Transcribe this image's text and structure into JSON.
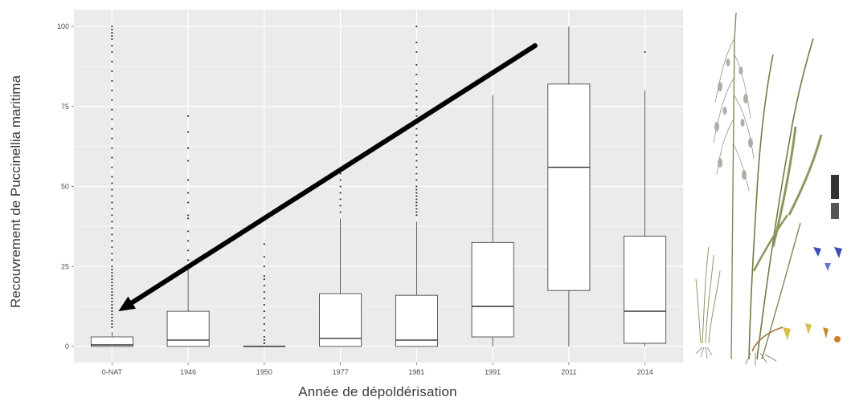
{
  "chart_data": {
    "type": "boxplot",
    "title": "",
    "xlabel": "Année de dépoldérisation",
    "ylabel": "Recouvrement de Puccinellia maritima",
    "ylim": [
      0,
      100
    ],
    "yticks": [
      0,
      25,
      50,
      75,
      100
    ],
    "grid": true,
    "categories": [
      "0-NAT",
      "1946",
      "1950",
      "1977",
      "1981",
      "1991",
      "2011",
      "2014"
    ],
    "boxes": [
      {
        "category": "0-NAT",
        "whisker_low": 0,
        "q1": 0,
        "median": 0.5,
        "q3": 3,
        "whisker_high": 4.5,
        "outliers": [
          6,
          7,
          8,
          9,
          10,
          11,
          12,
          13,
          14,
          15,
          16,
          17,
          18,
          19,
          20,
          21,
          22,
          23,
          24,
          25,
          27,
          29,
          31,
          33,
          35,
          37,
          39,
          41,
          43,
          45,
          47,
          49,
          51,
          53,
          56,
          59,
          62,
          65,
          68,
          71,
          74,
          77,
          80,
          83,
          86,
          89,
          92,
          94,
          96,
          97,
          98,
          99,
          100
        ]
      },
      {
        "category": "1946",
        "whisker_low": 0,
        "q1": 0,
        "median": 2,
        "q3": 11,
        "whisker_high": 24.5,
        "outliers": [
          27,
          30,
          33,
          36,
          40,
          41,
          45,
          48,
          52,
          58,
          62,
          67,
          72
        ]
      },
      {
        "category": "1950",
        "whisker_low": 0,
        "q1": 0,
        "median": 0,
        "q3": 0,
        "whisker_high": 0,
        "outliers": [
          1,
          2,
          3,
          5,
          7,
          9,
          11,
          13,
          15,
          17,
          19,
          21,
          22,
          25,
          28,
          32
        ]
      },
      {
        "category": "1977",
        "whisker_low": 0,
        "q1": 0,
        "median": 2.5,
        "q3": 16.5,
        "whisker_high": 40,
        "outliers": [
          42,
          44,
          46,
          48,
          50,
          52,
          54
        ]
      },
      {
        "category": "1981",
        "whisker_low": 0,
        "q1": 0,
        "median": 2,
        "q3": 16,
        "whisker_high": 39,
        "outliers": [
          41,
          42,
          43,
          44,
          45,
          46,
          47,
          48,
          49,
          50,
          52,
          54,
          56,
          58,
          60,
          62,
          64,
          66,
          68,
          70,
          72,
          74,
          76,
          78,
          80,
          82,
          85,
          88,
          92,
          95,
          100
        ]
      },
      {
        "category": "1991",
        "whisker_low": 0,
        "q1": 3,
        "median": 12.5,
        "q3": 32.5,
        "whisker_high": 78.5,
        "outliers": []
      },
      {
        "category": "2011",
        "whisker_low": 0,
        "q1": 17.5,
        "median": 56,
        "q3": 82,
        "whisker_high": 100,
        "outliers": []
      },
      {
        "category": "2014",
        "whisker_low": 0,
        "q1": 1,
        "median": 11,
        "q3": 34.5,
        "whisker_high": 80,
        "outliers": [
          92
        ]
      }
    ],
    "annotation": {
      "shape": "arrow",
      "from": {
        "category": "2011",
        "y": 94
      },
      "to": {
        "category": "0-NAT",
        "y": 11
      },
      "color": "#000000"
    },
    "colors": {
      "panel": "#ebebeb",
      "gridline": "#ffffff",
      "box_fill": "#ffffff",
      "box_stroke": "#333333",
      "outlier": "#333333",
      "tick_text": "#4d4d4d"
    }
  },
  "figure": {
    "illustration": "puccinellia-maritima-botanical-drawing"
  }
}
